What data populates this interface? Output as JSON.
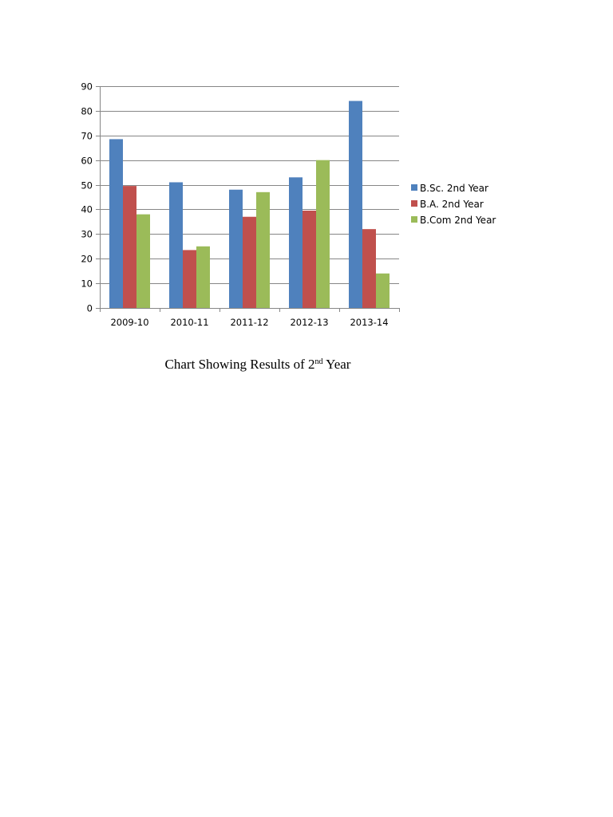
{
  "chart_data": {
    "type": "bar",
    "categories": [
      "2009-10",
      "2010-11",
      "2011-12",
      "2012-13",
      "2013-14"
    ],
    "series": [
      {
        "name": "B.Sc. 2nd Year",
        "values": [
          68.5,
          51,
          48,
          53,
          84
        ]
      },
      {
        "name": "B.A. 2nd Year",
        "values": [
          49.5,
          23.5,
          37,
          39.5,
          32
        ]
      },
      {
        "name": "B.Com 2nd Year",
        "values": [
          38,
          25,
          47,
          60,
          14
        ]
      }
    ],
    "ylim": [
      0,
      90
    ],
    "yticks": [
      0,
      10,
      20,
      30,
      40,
      50,
      60,
      70,
      80,
      90
    ],
    "grid": true,
    "legend": "right",
    "colors": [
      "#4f81bd",
      "#c0504d",
      "#9bbb59"
    ]
  },
  "caption": {
    "prefix": "Chart Showing Results of 2",
    "superscript": "nd",
    "suffix": " Year"
  }
}
